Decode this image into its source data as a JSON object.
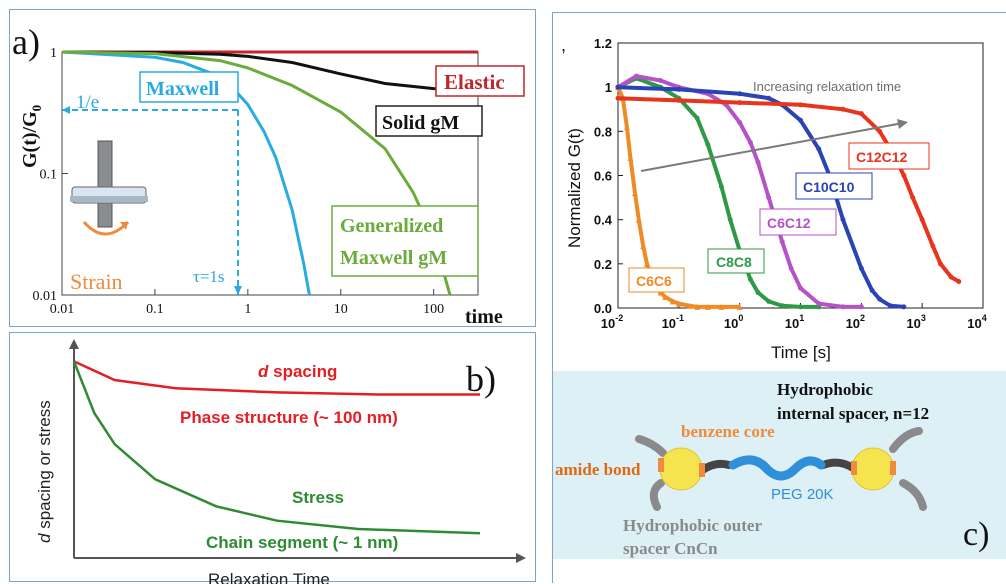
{
  "panel_a": {
    "panel_letter": "a)",
    "ylabel_main": "G(t)/G",
    "ylabel_sub": "0",
    "xlabel": "time",
    "x_ticks": [
      "0.01",
      "0.1",
      "1",
      "10",
      "100"
    ],
    "y_ticks": [
      "1",
      "0.1",
      "0.01"
    ],
    "annotation_1e": "1/e",
    "annotation_tau": "τ=1s",
    "label_strain": "Strain",
    "label_elastic": "Elastic",
    "label_solid": "Solid gM",
    "label_maxwell": "Maxwell",
    "label_gen_1": "Generalized",
    "label_gen_2": "Maxwell gM",
    "colors": {
      "elastic": "#c0272d",
      "solid": "#111111",
      "maxwell": "#29abe2",
      "generalized": "#6aab3a",
      "strain": "#f08a3c"
    }
  },
  "panel_b": {
    "panel_letter": "b)",
    "ylabel_italic": "d",
    "ylabel_rest": " spacing or stress",
    "xlabel": "Relaxation Time",
    "d_spacing_italic": "d",
    "d_spacing_rest": " spacing",
    "phase_structure": "Phase structure (~ 100 nm)",
    "stress": "Stress",
    "chain_segment": "Chain segment (~ 1 nm)",
    "colors": {
      "red": "#e31e24",
      "green": "#2e8b34"
    }
  },
  "panel_c_chart": {
    "corner_mark": ",",
    "ylabel": "Normalized G(t)",
    "xlabel": "Time [s]",
    "y_ticks": [
      "1.2",
      "1",
      "0.8",
      "0.6",
      "0.4",
      "0.2",
      "0.0"
    ],
    "x_tick_base": "10",
    "x_tick_exps": [
      "-2",
      "-1",
      "0",
      "1",
      "2",
      "3",
      "4"
    ],
    "annotation": "Increasing relaxation time",
    "series_labels": [
      "C6C6",
      "C8C8",
      "C6C12",
      "C10C10",
      "C12C12"
    ],
    "colors": {
      "C6C6": "#f08a24",
      "C8C8": "#2e9a46",
      "C6C12": "#b552c7",
      "C10C10": "#2a43b5",
      "C12C12": "#e8341c"
    }
  },
  "panel_c": {
    "panel_letter": "c)",
    "hydrophobic_1": "Hydrophobic",
    "hydrophobic_2": "internal spacer, n=12",
    "benzene": "benzene core",
    "amide": "amide bond",
    "peg": "PEG 20K",
    "outer_1": "Hydrophobic outer",
    "outer_2": "spacer CnCn"
  },
  "chart_data": [
    {
      "type": "line",
      "title": "",
      "xlabel": "time",
      "ylabel": "G(t)/G0",
      "x_scale": "log",
      "y_scale": "log",
      "xlim": [
        0.01,
        300
      ],
      "ylim": [
        0.01,
        1
      ],
      "series": [
        {
          "name": "Elastic",
          "x": [
            0.01,
            0.1,
            1,
            10,
            100,
            300
          ],
          "y": [
            1,
            1,
            1,
            1,
            1,
            1
          ]
        },
        {
          "name": "Solid gM",
          "x": [
            0.01,
            0.1,
            0.5,
            1,
            3,
            10,
            30,
            100,
            300
          ],
          "y": [
            1,
            0.99,
            0.96,
            0.92,
            0.82,
            0.66,
            0.55,
            0.5,
            0.49
          ]
        },
        {
          "name": "Maxwell",
          "x": [
            0.01,
            0.1,
            0.2,
            0.4,
            0.7,
            1,
            1.5,
            2,
            3,
            4,
            4.6
          ],
          "y": [
            1,
            0.905,
            0.82,
            0.67,
            0.5,
            0.37,
            0.22,
            0.135,
            0.05,
            0.018,
            0.01
          ]
        },
        {
          "name": "Generalized Maxwell gM",
          "x": [
            0.01,
            0.1,
            0.5,
            1,
            3,
            10,
            30,
            60,
            100,
            150
          ],
          "y": [
            1,
            0.97,
            0.85,
            0.74,
            0.53,
            0.32,
            0.16,
            0.07,
            0.03,
            0.01
          ]
        }
      ]
    },
    {
      "type": "line",
      "title": "",
      "xlabel": "Relaxation Time",
      "ylabel": "d spacing or stress",
      "series": [
        {
          "name": "d spacing",
          "x": [
            0,
            0.1,
            0.25,
            0.5,
            0.75,
            1
          ],
          "y": [
            0.95,
            0.86,
            0.82,
            0.8,
            0.79,
            0.79
          ]
        },
        {
          "name": "Stress",
          "x": [
            0,
            0.05,
            0.1,
            0.2,
            0.35,
            0.5,
            0.7,
            1
          ],
          "y": [
            0.95,
            0.7,
            0.55,
            0.38,
            0.25,
            0.18,
            0.14,
            0.12
          ]
        }
      ]
    },
    {
      "type": "scatter",
      "title": "",
      "xlabel": "Time [s]",
      "ylabel": "Normalized G(t)",
      "x_scale": "log",
      "xlim": [
        0.01,
        10000
      ],
      "ylim": [
        0,
        1.2
      ],
      "annotation": "Increasing relaxation time",
      "series": [
        {
          "name": "C6C6",
          "x": [
            0.01,
            0.012,
            0.014,
            0.016,
            0.019,
            0.022,
            0.026,
            0.03,
            0.035,
            0.04,
            0.05,
            0.06,
            0.08,
            0.1,
            0.15,
            0.2,
            0.3,
            0.5,
            1
          ],
          "y": [
            1.0,
            0.95,
            0.82,
            0.68,
            0.52,
            0.4,
            0.28,
            0.2,
            0.14,
            0.1,
            0.07,
            0.05,
            0.03,
            0.02,
            0.01,
            0.005,
            0.005,
            0.005,
            0.005
          ]
        },
        {
          "name": "C8C8",
          "x": [
            0.01,
            0.02,
            0.05,
            0.1,
            0.2,
            0.3,
            0.5,
            0.7,
            1,
            1.5,
            2,
            3,
            5,
            10,
            20
          ],
          "y": [
            1.0,
            1.04,
            1.0,
            0.95,
            0.86,
            0.74,
            0.55,
            0.4,
            0.26,
            0.13,
            0.07,
            0.03,
            0.01,
            0.005,
            0.005
          ]
        },
        {
          "name": "C6C12",
          "x": [
            0.01,
            0.02,
            0.05,
            0.1,
            0.3,
            0.6,
            1,
            1.5,
            2,
            3,
            5,
            7,
            10,
            20,
            50,
            100
          ],
          "y": [
            1.0,
            1.05,
            1.03,
            1.0,
            0.97,
            0.92,
            0.84,
            0.75,
            0.66,
            0.5,
            0.3,
            0.18,
            0.09,
            0.02,
            0.005,
            0.005
          ]
        },
        {
          "name": "C10C10",
          "x": [
            0.01,
            0.1,
            1,
            3,
            5,
            10,
            20,
            30,
            50,
            100,
            150,
            200,
            300,
            500
          ],
          "y": [
            1.0,
            0.99,
            0.97,
            0.95,
            0.92,
            0.85,
            0.72,
            0.6,
            0.4,
            0.18,
            0.08,
            0.04,
            0.01,
            0.005
          ]
        },
        {
          "name": "C12C12",
          "x": [
            0.01,
            0.1,
            1,
            10,
            50,
            100,
            200,
            300,
            500,
            700,
            1000,
            1500,
            2000,
            3000,
            4000
          ],
          "y": [
            0.95,
            0.94,
            0.93,
            0.92,
            0.9,
            0.88,
            0.8,
            0.72,
            0.6,
            0.5,
            0.4,
            0.28,
            0.2,
            0.14,
            0.12
          ]
        }
      ]
    }
  ]
}
